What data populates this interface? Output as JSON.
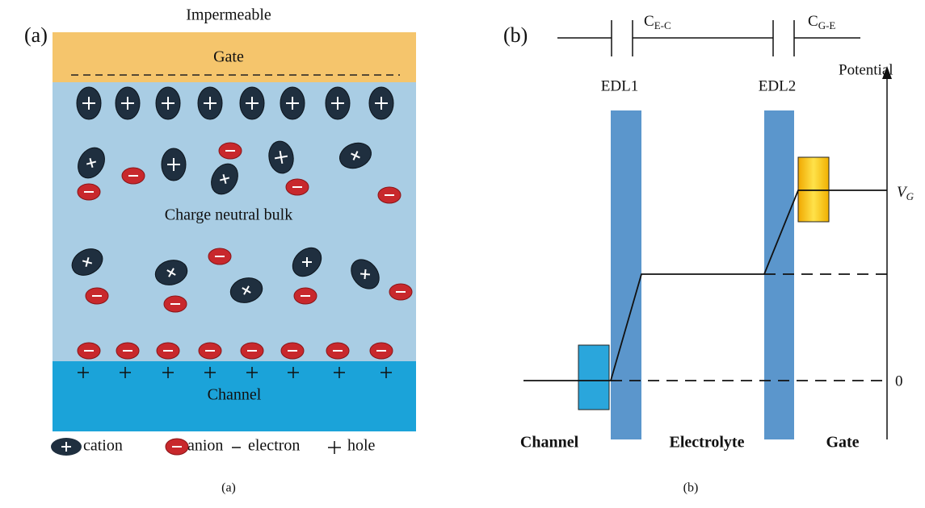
{
  "panel_a": {
    "label": "(a)",
    "top_note": "Impermeable",
    "gate": "Gate",
    "bulk": "Charge neutral bulk",
    "channel": "Channel",
    "legend": {
      "cation": "cation",
      "anion": "anion",
      "electron": "electron",
      "hole": "hole"
    },
    "caption": "(a)"
  },
  "panel_b": {
    "label": "(b)",
    "capacitor_ec": {
      "symbol": "C",
      "subscript": "E-C"
    },
    "capacitor_ge": {
      "symbol": "C",
      "subscript": "G-E"
    },
    "axis_label": "Potential",
    "edl1": "EDL1",
    "edl2": "EDL2",
    "vg": {
      "symbol": "V",
      "subscript": "G"
    },
    "zero": "0",
    "bottom": {
      "channel": "Channel",
      "electrolyte": "Electrolyte",
      "gate": "Gate"
    },
    "caption": "(b)"
  }
}
